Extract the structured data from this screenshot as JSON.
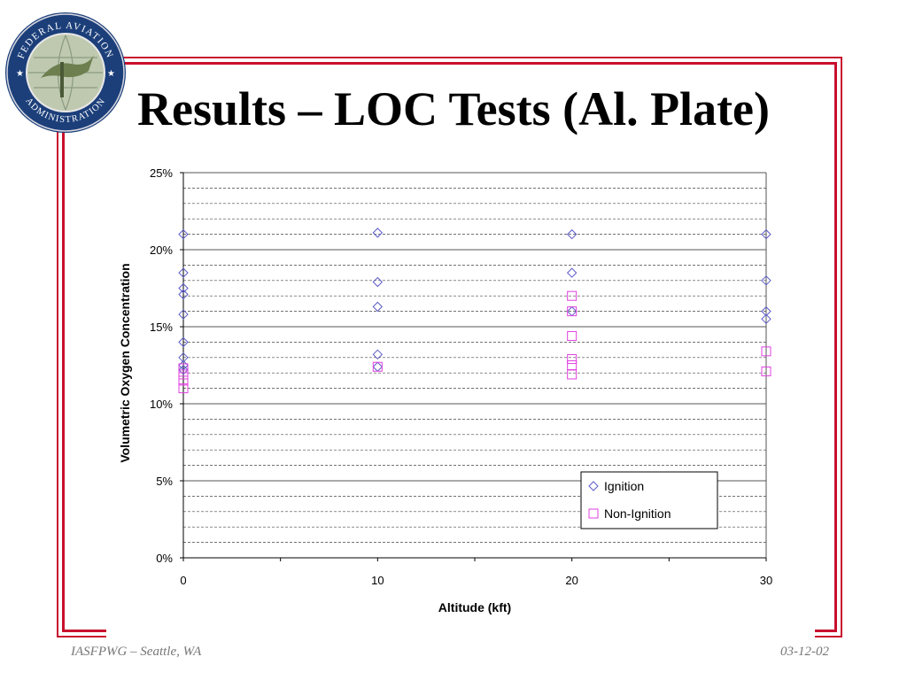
{
  "slide": {
    "title": "Results – LOC Tests (Al. Plate)",
    "footer_left": "IASFPWG – Seattle, WA",
    "footer_right": "03-12-02"
  },
  "logo": {
    "text_top": "FEDERAL AVIATION",
    "text_bottom": "ADMINISTRATION",
    "icon": "faa-seal-icon"
  },
  "colors": {
    "frame": "#c8102e",
    "ignition": "#5b5bc8",
    "non_ignition": "#e040e0"
  },
  "chart_data": {
    "type": "scatter",
    "xlabel": "Altitude (kft)",
    "ylabel": "Volumetric Oxygen Concentration",
    "xlim": [
      0,
      30
    ],
    "ylim": [
      0,
      25
    ],
    "x_ticks": [
      0,
      10,
      20,
      30
    ],
    "y_ticks": [
      "0%",
      "5%",
      "10%",
      "15%",
      "20%",
      "25%"
    ],
    "grid": "horizontal dashed minor every 1%, solid major every 5%",
    "legend_position": "bottom-right",
    "series": [
      {
        "name": "Ignition",
        "marker": "diamond",
        "color": "#5b5bc8",
        "points": [
          [
            0,
            21.0
          ],
          [
            0,
            18.5
          ],
          [
            0,
            17.5
          ],
          [
            0,
            17.1
          ],
          [
            0,
            15.8
          ],
          [
            0,
            14.0
          ],
          [
            0,
            13.0
          ],
          [
            0,
            12.5
          ],
          [
            0,
            12.2
          ],
          [
            10,
            21.1
          ],
          [
            10,
            17.9
          ],
          [
            10,
            16.3
          ],
          [
            10,
            13.2
          ],
          [
            10,
            12.4
          ],
          [
            20,
            21.0
          ],
          [
            20,
            18.5
          ],
          [
            20,
            16.0
          ],
          [
            30,
            21.0
          ],
          [
            30,
            18.0
          ],
          [
            30,
            16.0
          ],
          [
            30,
            15.5
          ]
        ]
      },
      {
        "name": "Non-Ignition",
        "marker": "square",
        "color": "#e040e0",
        "points": [
          [
            0,
            12.3
          ],
          [
            0,
            11.9
          ],
          [
            0,
            11.5
          ],
          [
            0,
            11.0
          ],
          [
            10,
            12.4
          ],
          [
            20,
            17.0
          ],
          [
            20,
            16.0
          ],
          [
            20,
            14.4
          ],
          [
            20,
            12.9
          ],
          [
            20,
            12.5
          ],
          [
            20,
            11.9
          ],
          [
            30,
            13.4
          ],
          [
            30,
            12.1
          ]
        ]
      }
    ]
  }
}
